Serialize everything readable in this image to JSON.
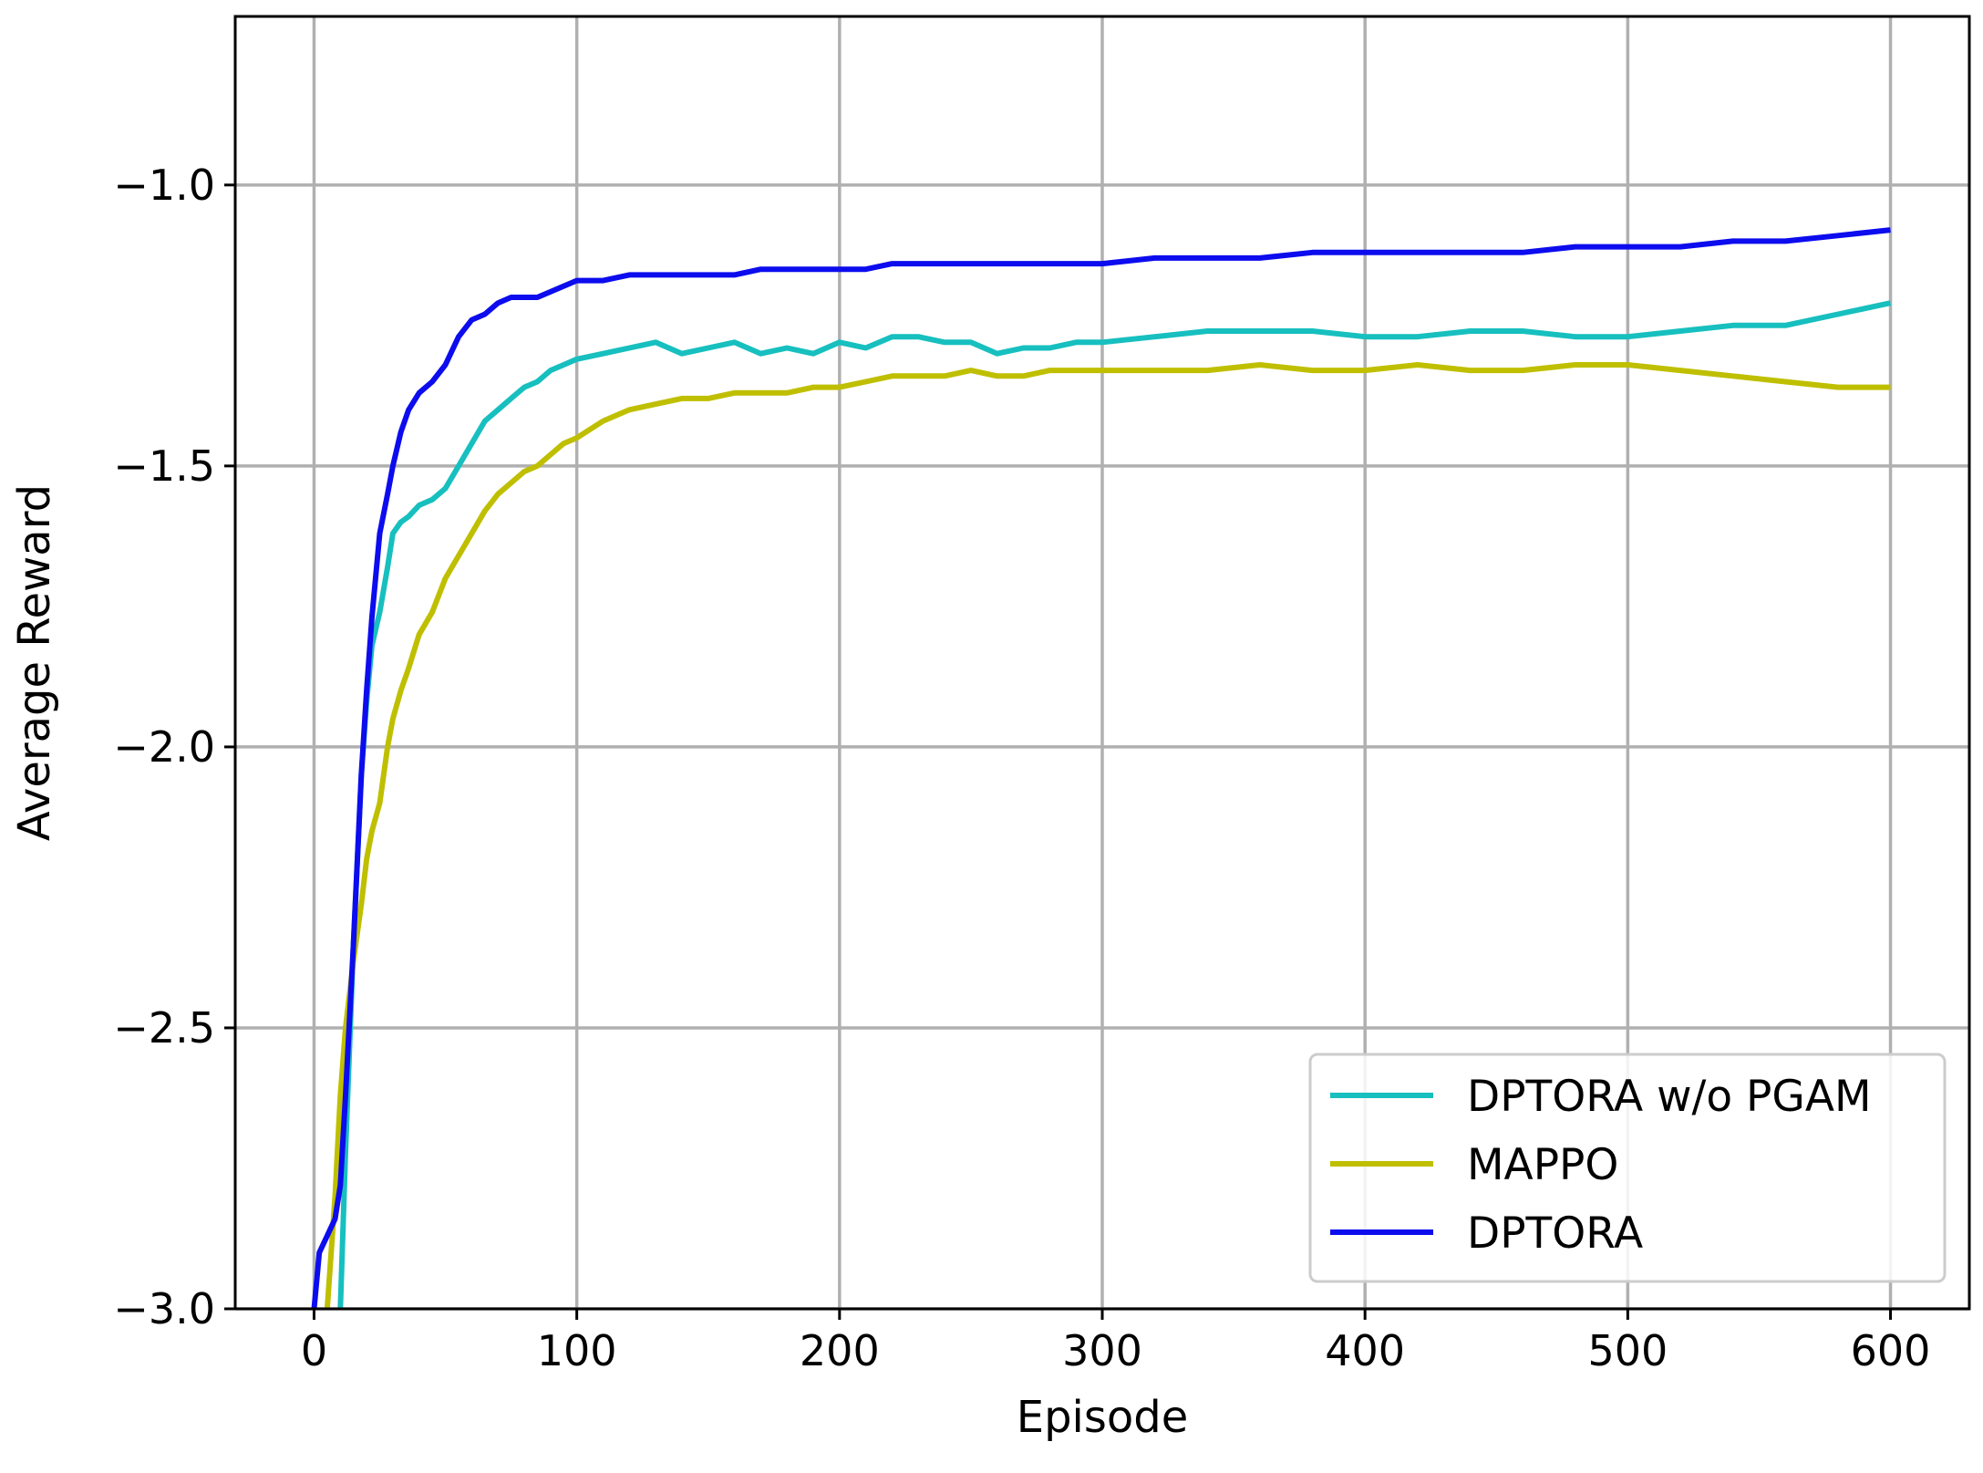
{
  "chart_data": {
    "type": "line",
    "title": "",
    "xlabel": "Episode",
    "ylabel": "Average Reward",
    "xlim": [
      -30,
      630
    ],
    "ylim": [
      -3.0,
      -0.7
    ],
    "xticks": [
      0,
      100,
      200,
      300,
      400,
      500,
      600
    ],
    "xtick_labels": [
      "0",
      "100",
      "200",
      "300",
      "400",
      "500",
      "600"
    ],
    "yticks": [
      -3.0,
      -2.5,
      -2.0,
      -1.5,
      -1.0
    ],
    "ytick_labels": [
      "−3.0",
      "−2.5",
      "−2.0",
      "−1.5",
      "−1.0"
    ],
    "grid": true,
    "legend_position": "lower-right",
    "series": [
      {
        "name": "DPTORA w/o PGAM",
        "color": "#17bfbf",
        "x": [
          10,
          12,
          15,
          18,
          20,
          22,
          25,
          28,
          30,
          33,
          36,
          40,
          45,
          50,
          55,
          60,
          65,
          70,
          75,
          80,
          85,
          90,
          95,
          100,
          110,
          120,
          130,
          140,
          150,
          160,
          170,
          180,
          190,
          200,
          210,
          220,
          230,
          240,
          250,
          260,
          270,
          280,
          290,
          300,
          320,
          340,
          360,
          380,
          400,
          420,
          440,
          460,
          480,
          500,
          520,
          540,
          560,
          580,
          600
        ],
        "y": [
          -3.0,
          -2.72,
          -2.35,
          -2.05,
          -1.92,
          -1.82,
          -1.76,
          -1.68,
          -1.62,
          -1.6,
          -1.59,
          -1.57,
          -1.56,
          -1.54,
          -1.5,
          -1.46,
          -1.42,
          -1.4,
          -1.38,
          -1.36,
          -1.35,
          -1.33,
          -1.32,
          -1.31,
          -1.3,
          -1.29,
          -1.28,
          -1.3,
          -1.29,
          -1.28,
          -1.3,
          -1.29,
          -1.3,
          -1.28,
          -1.29,
          -1.27,
          -1.27,
          -1.28,
          -1.28,
          -1.3,
          -1.29,
          -1.29,
          -1.28,
          -1.28,
          -1.27,
          -1.26,
          -1.26,
          -1.26,
          -1.27,
          -1.27,
          -1.26,
          -1.26,
          -1.27,
          -1.27,
          -1.26,
          -1.25,
          -1.25,
          -1.23,
          -1.21
        ]
      },
      {
        "name": "MAPPO",
        "color": "#bfbf00",
        "x": [
          5,
          8,
          10,
          12,
          15,
          18,
          20,
          22,
          25,
          28,
          30,
          33,
          36,
          40,
          45,
          50,
          55,
          60,
          65,
          70,
          75,
          80,
          85,
          90,
          95,
          100,
          110,
          120,
          130,
          140,
          150,
          160,
          170,
          180,
          190,
          200,
          210,
          220,
          230,
          240,
          250,
          260,
          270,
          280,
          290,
          300,
          320,
          340,
          360,
          380,
          400,
          420,
          440,
          460,
          480,
          500,
          520,
          540,
          560,
          580,
          600
        ],
        "y": [
          -3.0,
          -2.8,
          -2.62,
          -2.5,
          -2.38,
          -2.28,
          -2.2,
          -2.15,
          -2.1,
          -2.0,
          -1.95,
          -1.9,
          -1.86,
          -1.8,
          -1.76,
          -1.7,
          -1.66,
          -1.62,
          -1.58,
          -1.55,
          -1.53,
          -1.51,
          -1.5,
          -1.48,
          -1.46,
          -1.45,
          -1.42,
          -1.4,
          -1.39,
          -1.38,
          -1.38,
          -1.37,
          -1.37,
          -1.37,
          -1.36,
          -1.36,
          -1.35,
          -1.34,
          -1.34,
          -1.34,
          -1.33,
          -1.34,
          -1.34,
          -1.33,
          -1.33,
          -1.33,
          -1.33,
          -1.33,
          -1.32,
          -1.33,
          -1.33,
          -1.32,
          -1.33,
          -1.33,
          -1.32,
          -1.32,
          -1.33,
          -1.34,
          -1.35,
          -1.36,
          -1.36
        ]
      },
      {
        "name": "DPTORA",
        "color": "#0c0cee",
        "x": [
          0,
          2,
          5,
          8,
          10,
          12,
          15,
          18,
          20,
          22,
          25,
          28,
          30,
          33,
          36,
          40,
          45,
          50,
          55,
          60,
          65,
          70,
          75,
          80,
          85,
          90,
          95,
          100,
          110,
          120,
          130,
          140,
          150,
          160,
          170,
          180,
          190,
          200,
          210,
          220,
          230,
          240,
          250,
          260,
          270,
          280,
          290,
          300,
          320,
          340,
          360,
          380,
          400,
          420,
          440,
          460,
          480,
          500,
          520,
          540,
          560,
          580,
          600
        ],
        "y": [
          -3.0,
          -2.9,
          -2.87,
          -2.84,
          -2.78,
          -2.62,
          -2.35,
          -2.05,
          -1.9,
          -1.77,
          -1.62,
          -1.55,
          -1.5,
          -1.44,
          -1.4,
          -1.37,
          -1.35,
          -1.32,
          -1.27,
          -1.24,
          -1.23,
          -1.21,
          -1.2,
          -1.2,
          -1.2,
          -1.19,
          -1.18,
          -1.17,
          -1.17,
          -1.16,
          -1.16,
          -1.16,
          -1.16,
          -1.16,
          -1.15,
          -1.15,
          -1.15,
          -1.15,
          -1.15,
          -1.14,
          -1.14,
          -1.14,
          -1.14,
          -1.14,
          -1.14,
          -1.14,
          -1.14,
          -1.14,
          -1.13,
          -1.13,
          -1.13,
          -1.12,
          -1.12,
          -1.12,
          -1.12,
          -1.12,
          -1.11,
          -1.11,
          -1.11,
          -1.1,
          -1.1,
          -1.09,
          -1.08
        ]
      }
    ]
  }
}
